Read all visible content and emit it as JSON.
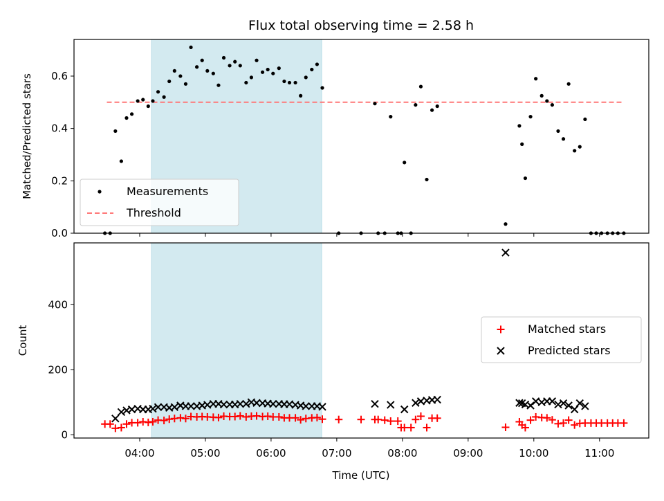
{
  "chart_data": {
    "type": "scatter",
    "title": "Flux total observing time = 2.58 h",
    "shared_x": {
      "label": "Time (UTC)",
      "unit": "hour",
      "range": [
        3.0,
        11.75
      ],
      "ticks": [
        4,
        5,
        6,
        7,
        8,
        9,
        10,
        11
      ],
      "tick_labels": [
        "04:00",
        "05:00",
        "06:00",
        "07:00",
        "08:00",
        "09:00",
        "10:00",
        "11:00"
      ]
    },
    "highlight_span": {
      "x": [
        4.18,
        6.77
      ],
      "color": "#d3eaf0"
    },
    "top_panel": {
      "ylabel": "Matched/Predicted stars",
      "ylim": [
        0,
        0.74
      ],
      "yticks": [
        0.0,
        0.2,
        0.4,
        0.6
      ],
      "ytick_labels": [
        "0.0",
        "0.2",
        "0.4",
        "0.6"
      ],
      "legend": {
        "placement": "lower-left",
        "entries": [
          "Measurements",
          "Threshold"
        ]
      },
      "threshold": {
        "name": "Threshold",
        "y": 0.5,
        "x": [
          3.5,
          11.35
        ],
        "color": "#ff7777",
        "style": "dashed"
      },
      "series": [
        {
          "name": "Measurements",
          "color": "#000000",
          "marker": "dot",
          "x": [
            3.47,
            3.55,
            3.63,
            3.72,
            3.8,
            3.88,
            3.97,
            4.05,
            4.13,
            4.2,
            4.28,
            4.37,
            4.45,
            4.53,
            4.62,
            4.7,
            4.78,
            4.87,
            4.95,
            5.03,
            5.12,
            5.2,
            5.28,
            5.37,
            5.45,
            5.53,
            5.62,
            5.7,
            5.78,
            5.87,
            5.95,
            6.03,
            6.12,
            6.2,
            6.28,
            6.37,
            6.45,
            6.53,
            6.62,
            6.7,
            6.78,
            7.03,
            7.37,
            7.58,
            7.63,
            7.73,
            7.82,
            7.93,
            7.98,
            8.03,
            8.13,
            8.2,
            8.28,
            8.37,
            8.45,
            8.53,
            9.57,
            9.78,
            9.82,
            9.87,
            9.95,
            10.03,
            10.12,
            10.2,
            10.28,
            10.37,
            10.45,
            10.53,
            10.62,
            10.7,
            10.78,
            10.87,
            10.95,
            11.03,
            11.12,
            11.2,
            11.28,
            11.37
          ],
          "values": [
            0.0,
            0.0,
            0.39,
            0.275,
            0.44,
            0.455,
            0.505,
            0.51,
            0.485,
            0.505,
            0.54,
            0.52,
            0.58,
            0.62,
            0.6,
            0.57,
            0.71,
            0.635,
            0.66,
            0.62,
            0.61,
            0.565,
            0.67,
            0.64,
            0.655,
            0.64,
            0.575,
            0.595,
            0.66,
            0.615,
            0.625,
            0.61,
            0.63,
            0.58,
            0.575,
            0.575,
            0.525,
            0.595,
            0.625,
            0.645,
            0.555,
            0.0,
            0.0,
            0.495,
            0.0,
            0.0,
            0.445,
            0.0,
            0.0,
            0.27,
            0.0,
            0.49,
            0.56,
            0.205,
            0.47,
            0.485,
            0.035,
            0.41,
            0.34,
            0.21,
            0.445,
            0.59,
            0.525,
            0.505,
            0.49,
            0.39,
            0.36,
            0.57,
            0.315,
            0.33,
            0.435,
            0.0,
            0.0,
            0.0,
            0.0,
            0.0,
            0.0,
            0.0
          ]
        }
      ]
    },
    "bottom_panel": {
      "ylabel": "Count",
      "ylim": [
        -10,
        590
      ],
      "yticks": [
        0,
        200,
        400
      ],
      "ytick_labels": [
        "0",
        "200",
        "400"
      ],
      "legend": {
        "placement": "center-right",
        "entries": [
          "Matched stars",
          "Predicted stars"
        ]
      },
      "series": [
        {
          "name": "Matched stars",
          "color": "#ff0000",
          "marker": "plus",
          "x": [
            3.47,
            3.55,
            3.63,
            3.72,
            3.8,
            3.88,
            3.97,
            4.05,
            4.13,
            4.2,
            4.28,
            4.37,
            4.45,
            4.53,
            4.62,
            4.7,
            4.78,
            4.87,
            4.95,
            5.03,
            5.12,
            5.2,
            5.28,
            5.37,
            5.45,
            5.53,
            5.62,
            5.7,
            5.78,
            5.87,
            5.95,
            6.03,
            6.12,
            6.2,
            6.28,
            6.37,
            6.45,
            6.53,
            6.62,
            6.7,
            6.78,
            7.03,
            7.37,
            7.58,
            7.63,
            7.73,
            7.82,
            7.93,
            7.98,
            8.03,
            8.13,
            8.2,
            8.28,
            8.37,
            8.45,
            8.53,
            9.57,
            9.78,
            9.82,
            9.87,
            9.95,
            10.03,
            10.12,
            10.2,
            10.28,
            10.37,
            10.45,
            10.53,
            10.62,
            10.7,
            10.78,
            10.87,
            10.95,
            11.03,
            11.12,
            11.2,
            11.28,
            11.37
          ],
          "values": [
            33,
            33,
            20,
            22,
            33,
            37,
            37,
            40,
            38,
            40,
            45,
            44,
            48,
            50,
            52,
            50,
            56,
            55,
            56,
            55,
            54,
            53,
            57,
            56,
            56,
            58,
            55,
            57,
            58,
            56,
            57,
            55,
            55,
            52,
            52,
            52,
            46,
            50,
            52,
            53,
            48,
            47,
            47,
            47,
            47,
            45,
            42,
            42,
            22,
            22,
            22,
            47,
            57,
            22,
            51,
            51,
            23,
            40,
            30,
            22,
            45,
            55,
            53,
            52,
            46,
            34,
            36,
            45,
            30,
            35,
            36,
            36,
            36,
            36,
            36,
            36,
            36,
            36
          ]
        },
        {
          "name": "Predicted stars",
          "color": "#000000",
          "marker": "x",
          "x": [
            3.63,
            3.72,
            3.8,
            3.88,
            3.97,
            4.05,
            4.13,
            4.2,
            4.28,
            4.37,
            4.45,
            4.53,
            4.62,
            4.7,
            4.78,
            4.87,
            4.95,
            5.03,
            5.12,
            5.2,
            5.28,
            5.37,
            5.45,
            5.53,
            5.62,
            5.7,
            5.78,
            5.87,
            5.95,
            6.03,
            6.12,
            6.2,
            6.28,
            6.37,
            6.45,
            6.53,
            6.62,
            6.7,
            6.78,
            7.58,
            7.82,
            8.03,
            8.2,
            8.28,
            8.37,
            8.45,
            8.53,
            9.57,
            9.78,
            9.82,
            9.87,
            9.95,
            10.03,
            10.12,
            10.2,
            10.28,
            10.37,
            10.45,
            10.53,
            10.62,
            10.7,
            10.78
          ],
          "values": [
            50,
            70,
            75,
            78,
            80,
            78,
            78,
            80,
            85,
            85,
            83,
            85,
            90,
            88,
            88,
            88,
            90,
            92,
            95,
            95,
            93,
            93,
            93,
            95,
            95,
            100,
            98,
            97,
            96,
            95,
            95,
            94,
            94,
            92,
            90,
            88,
            88,
            88,
            86,
            95,
            92,
            78,
            98,
            103,
            105,
            107,
            108,
            560,
            98,
            97,
            93,
            90,
            103,
            100,
            103,
            103,
            93,
            97,
            90,
            78,
            97,
            88
          ]
        }
      ]
    }
  }
}
